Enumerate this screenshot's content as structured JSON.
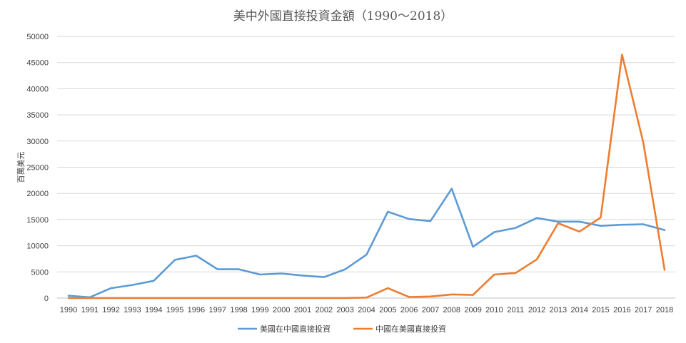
{
  "chart_data": {
    "type": "line",
    "title": "美中外國直接投資金額（1990～2018）",
    "ylabel": "百萬美元",
    "xlabel": "",
    "ylim": [
      0,
      50000
    ],
    "yticks": [
      0,
      5000,
      10000,
      15000,
      20000,
      25000,
      30000,
      35000,
      40000,
      45000,
      50000
    ],
    "grid": true,
    "legend_position": "bottom",
    "x": [
      "1990",
      "1991",
      "1992",
      "1993",
      "1994",
      "1995",
      "1996",
      "1997",
      "1998",
      "1999",
      "2000",
      "2001",
      "2002",
      "2003",
      "2004",
      "2005",
      "2006",
      "2007",
      "2008",
      "2009",
      "2010",
      "2011",
      "2012",
      "2013",
      "2014",
      "2015",
      "2016",
      "2017",
      "2018"
    ],
    "series": [
      {
        "name": "美國在中國直接投資",
        "color": "#5b9bd5",
        "values": [
          450,
          150,
          1900,
          2500,
          3300,
          7300,
          8100,
          5500,
          5500,
          4500,
          4700,
          4300,
          4000,
          5500,
          8300,
          16500,
          15100,
          14700,
          20900,
          9800,
          12600,
          13400,
          15300,
          14600,
          14600,
          13800,
          14000,
          14100,
          13000
        ]
      },
      {
        "name": "中國在美國直接投資",
        "color": "#ed7d31",
        "values": [
          20,
          20,
          20,
          20,
          20,
          20,
          20,
          20,
          20,
          20,
          20,
          20,
          20,
          20,
          100,
          1900,
          200,
          300,
          700,
          600,
          4500,
          4800,
          7400,
          14300,
          12700,
          15400,
          46500,
          29700,
          5400
        ]
      }
    ]
  }
}
